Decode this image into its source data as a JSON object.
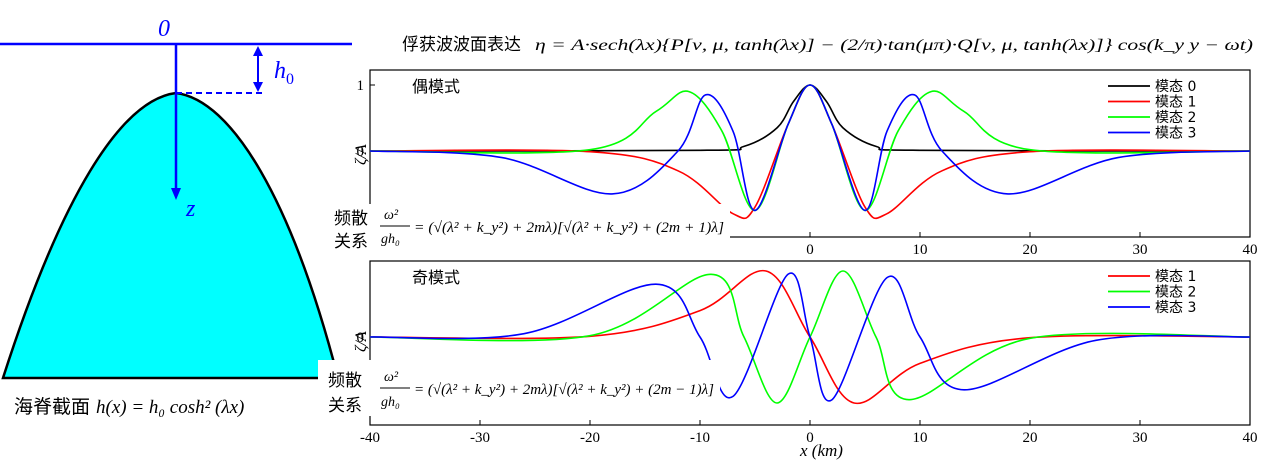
{
  "ridge": {
    "sea_level_label": "0",
    "depth_label": "h",
    "depth_label_sub": "0",
    "z_axis_label": "z",
    "caption_cn": "海脊截面",
    "caption_formula": "h(x) = h₀ cosh² (λx)",
    "fill_color": "#00ffff",
    "line_color": "#0000ff"
  },
  "header": {
    "title_cn": "俘获波波面表达",
    "formula": "η = A·sech(λx){P[ν, μ, tanh(λx)] − (2/π)·tan(μπ)·Q[ν, μ, tanh(λx)]} cos(k_y y − ωt)"
  },
  "dispersion": {
    "label_line1": "频散",
    "label_line2": "关系",
    "lhs_num": "ω²",
    "lhs_den": "gh₀",
    "even_rhs": "= (√(λ² + k_y²) + 2mλ)[√(λ² + k_y²) + (2m + 1)λ]",
    "odd_rhs": "= (√(λ² + k_y²) + 2mλ)[√(λ² + k_y²) + (2m − 1)λ]"
  },
  "chart_data": [
    {
      "type": "line",
      "title": "偶模式",
      "ylabel": "ζ/A",
      "xlim": [
        -40,
        40
      ],
      "ylim": [
        -1.0,
        1.05
      ],
      "x_ticks": [
        0,
        10,
        20,
        30,
        40
      ],
      "y_ticks": [
        {
          "value": 0,
          "label": "0"
        },
        {
          "value": 1,
          "label": "1"
        }
      ],
      "legend_position": "top-right",
      "series": [
        {
          "name": "模态  0",
          "color": "#000000",
          "x": [
            -40,
            -10,
            -6,
            -3,
            -1.5,
            0,
            1.5,
            3,
            6,
            10,
            40
          ],
          "y": [
            0,
            0.01,
            0.07,
            0.35,
            0.75,
            1,
            0.75,
            0.35,
            0.07,
            0.01,
            0
          ]
        },
        {
          "name": "模态  1",
          "color": "#ff0000",
          "x": [
            -40,
            -20,
            -12,
            -7,
            -5,
            -2,
            0,
            2,
            5,
            7,
            12,
            20,
            40
          ],
          "y": [
            0,
            -0.01,
            -0.3,
            -0.95,
            -0.85,
            0.4,
            1,
            0.4,
            -0.85,
            -0.95,
            -0.3,
            -0.01,
            0
          ]
        },
        {
          "name": "模态  2",
          "color": "#00ff00",
          "x": [
            -40,
            -20,
            -14,
            -11,
            -8,
            -5,
            -2,
            0,
            2,
            5,
            8,
            11,
            14,
            20,
            40
          ],
          "y": [
            0,
            0.02,
            0.6,
            0.9,
            0.3,
            -0.9,
            0.4,
            1,
            0.4,
            -0.9,
            0.3,
            0.9,
            0.6,
            0.02,
            0
          ]
        },
        {
          "name": "模态  3",
          "color": "#0000ff",
          "x": [
            -40,
            -28,
            -18,
            -12,
            -9.5,
            -7,
            -5,
            -2,
            0,
            2,
            5,
            7,
            9.5,
            12,
            18,
            28,
            40
          ],
          "y": [
            0,
            -0.1,
            -0.65,
            0,
            0.85,
            0.3,
            -0.9,
            0.4,
            1,
            0.4,
            -0.9,
            0.3,
            0.85,
            0,
            -0.65,
            -0.1,
            0
          ]
        }
      ]
    },
    {
      "type": "line",
      "title": "奇模式",
      "ylabel": "ζ/A",
      "xlim": [
        -40,
        40
      ],
      "ylim": [
        -1.0,
        1.05
      ],
      "x_ticks": [
        -40,
        -30,
        -20,
        -10,
        0,
        10,
        20,
        30,
        40
      ],
      "y_ticks": [
        {
          "value": 0,
          "label": "0"
        }
      ],
      "xlabel": "x (km)",
      "legend_position": "top-right",
      "series": [
        {
          "name": "模态  1",
          "color": "#ff0000",
          "x": [
            -40,
            -20,
            -10,
            -4,
            0,
            4,
            10,
            20,
            40
          ],
          "y": [
            0,
            0.01,
            0.4,
            1,
            0,
            -1,
            -0.4,
            -0.01,
            0
          ]
        },
        {
          "name": "模态  2",
          "color": "#00ff00",
          "x": [
            -40,
            -20,
            -9,
            -6,
            -3,
            0,
            3,
            6,
            9,
            20,
            40
          ],
          "y": [
            0,
            0.02,
            0.95,
            0,
            -1,
            0,
            1,
            0,
            -0.95,
            -0.02,
            0
          ]
        },
        {
          "name": "模态  3",
          "color": "#0000ff",
          "x": [
            -40,
            -26,
            -14,
            -10,
            -7,
            -2,
            0,
            2,
            7,
            10,
            14,
            26,
            40
          ],
          "y": [
            0,
            0.05,
            0.8,
            0,
            -0.9,
            0.95,
            0,
            -0.95,
            0.9,
            0,
            -0.8,
            -0.05,
            0
          ]
        }
      ]
    }
  ]
}
